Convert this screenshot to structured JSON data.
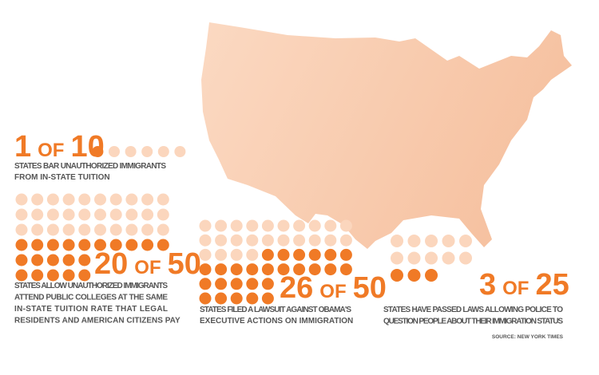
{
  "panels": [
    {
      "count": 1,
      "of": "OF",
      "total": 10,
      "description": [
        "STATES BAR UNAUTHORIZED IMMIGRANTS",
        "FROM IN-STATE TUITION"
      ]
    },
    {
      "count": 20,
      "of": "OF",
      "total": 50,
      "description": [
        "STATES ALLOW UNAUTHORIZED IMMIGRANTS",
        "ATTEND PUBLIC COLLEGES AT THE SAME",
        "IN-STATE TUITION RATE THAT LEGAL",
        "RESIDENTS AND AMERICAN CITIZENS PAY"
      ]
    },
    {
      "count": 26,
      "of": "OF",
      "total": 50,
      "description": [
        "STATES FILED A LAWSUIT AGAINST OBAMA'S",
        "EXECUTIVE ACTIONS ON IMMIGRATION"
      ]
    },
    {
      "count": 3,
      "of": "OF",
      "total": 25,
      "description": [
        "STATES HAVE PASSED LAWS ALLOWING POLICE TO",
        "QUESTION PEOPLE ABOUT THEIR IMMIGRATION STATUS"
      ]
    }
  ],
  "source": "SOURCE: NEW YORK TIMES"
}
